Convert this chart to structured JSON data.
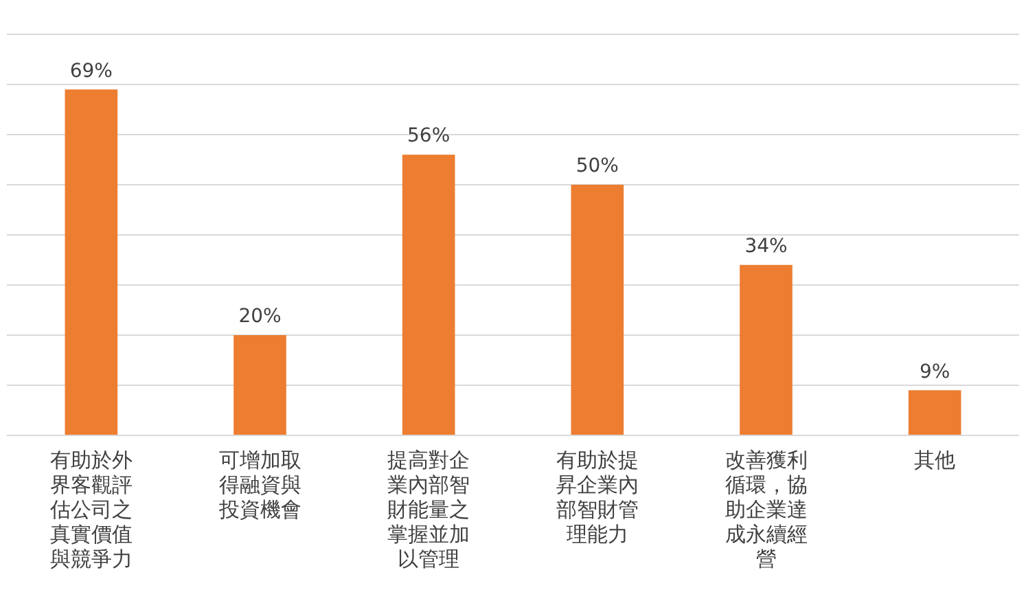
{
  "chart_data": {
    "type": "bar",
    "categories": [
      "有助於外界客觀評估公司之真實價值與競爭力",
      "可增加取得融資與投資機會",
      "提高對企業內部智財能量之掌握並加以管理",
      "有助於提昇企業內部智財管理能力",
      "改善獲利循環，協助企業達成永續經營",
      "其他"
    ],
    "values": [
      69,
      20,
      56,
      50,
      34,
      9
    ],
    "value_labels": [
      "69%",
      "20%",
      "56%",
      "50%",
      "34%",
      "9%"
    ],
    "color": "#ed7d31",
    "ylim": [
      0,
      80
    ],
    "yticks": [
      {
        "value": 0,
        "label": null
      },
      {
        "value": 10,
        "label": null
      },
      {
        "value": 20,
        "label": null
      },
      {
        "value": 30,
        "label": null
      },
      {
        "value": 40,
        "label": null
      },
      {
        "value": 50,
        "label": null
      },
      {
        "value": 60,
        "label": null
      },
      {
        "value": 70,
        "label": null
      },
      {
        "value": 80,
        "label": null
      }
    ],
    "tick_labels": "x",
    "grid": "y",
    "legend": false
  }
}
